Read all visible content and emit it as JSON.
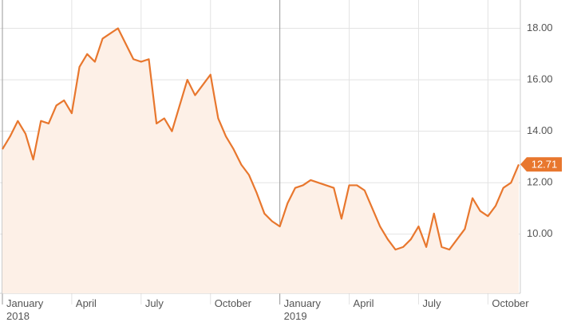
{
  "chart_data": {
    "type": "line",
    "categories": [
      "January 2018",
      null,
      null,
      null,
      null,
      null,
      null,
      null,
      null,
      "April",
      null,
      null,
      null,
      null,
      null,
      null,
      null,
      null,
      "July",
      null,
      null,
      null,
      null,
      null,
      null,
      null,
      null,
      "October",
      null,
      null,
      null,
      null,
      null,
      null,
      null,
      null,
      "January 2019",
      null,
      null,
      null,
      null,
      null,
      null,
      null,
      null,
      "April",
      null,
      null,
      null,
      null,
      null,
      null,
      null,
      null,
      "July",
      null,
      null,
      null,
      null,
      null,
      null,
      null,
      null,
      "October",
      null,
      null,
      null,
      null
    ],
    "values": [
      13.3,
      13.8,
      14.4,
      13.9,
      12.9,
      14.4,
      14.3,
      15.0,
      15.2,
      14.7,
      16.5,
      17.0,
      16.7,
      17.6,
      17.8,
      18.0,
      17.4,
      16.8,
      16.7,
      16.8,
      14.3,
      14.5,
      14.0,
      15.0,
      16.0,
      15.4,
      15.8,
      16.2,
      14.5,
      13.8,
      13.3,
      12.7,
      12.3,
      11.6,
      10.8,
      10.5,
      10.3,
      11.2,
      11.8,
      11.9,
      12.1,
      12.0,
      11.9,
      11.8,
      10.6,
      11.9,
      11.9,
      11.7,
      11.0,
      10.3,
      9.8,
      9.4,
      9.5,
      9.8,
      10.3,
      9.5,
      10.8,
      9.5,
      9.4,
      9.8,
      10.2,
      11.4,
      10.9,
      10.7,
      11.1,
      11.8,
      12.0,
      12.71
    ],
    "color": "#e8772e",
    "area_color": "#fdf0e7",
    "ylim": [
      7.7,
      19.1
    ],
    "yticks": [
      {
        "value": 10,
        "label": "10.00"
      },
      {
        "value": 12,
        "label": "12.00"
      },
      {
        "value": 14,
        "label": "14.00"
      },
      {
        "value": 16,
        "label": "16.00"
      },
      {
        "value": 18,
        "label": "18.00"
      }
    ],
    "grid": true,
    "y_axis_side": "right"
  }
}
